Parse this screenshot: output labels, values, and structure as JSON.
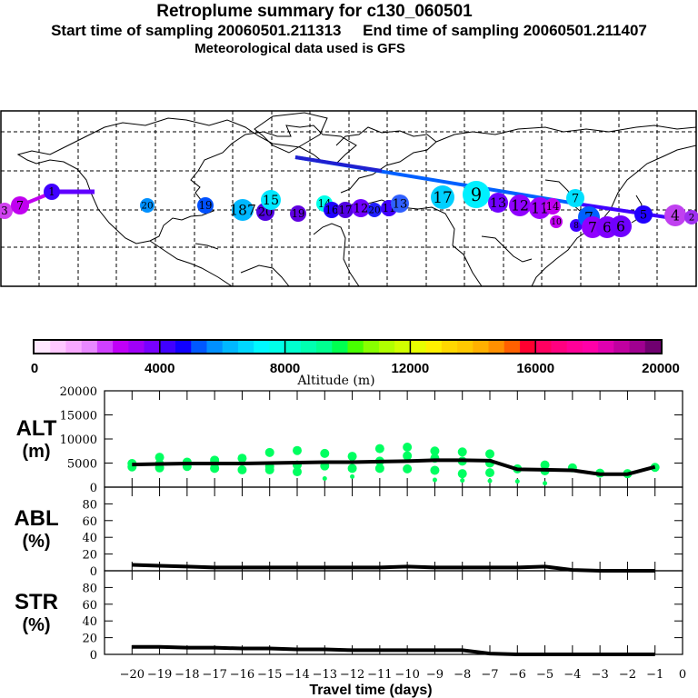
{
  "header": {
    "title": "Retroplume summary for c130_060501",
    "sampling": "Start time of sampling 20060501.211313     End time of sampling 20060501.211407",
    "met": "Meteorological data used is GFS"
  },
  "map": {
    "description": "Retroplume map (North Pacific -> North America -> Atlantic -> Eurasia -> East Asia)",
    "markers": [
      {
        "label": "3",
        "color": "#d040f0"
      },
      {
        "label": "7",
        "color": "#c000f0"
      },
      {
        "label": "1",
        "color": "#4000ff"
      },
      {
        "label": "20",
        "color": "#0090ff"
      },
      {
        "label": "19",
        "color": "#0050ff"
      },
      {
        "label": "187",
        "color": "#00b8ff"
      },
      {
        "label": "20",
        "color": "#5000e0"
      },
      {
        "label": "15",
        "color": "#00e8ff"
      },
      {
        "label": "19",
        "color": "#6000e0"
      },
      {
        "label": "14",
        "color": "#00ffe8"
      },
      {
        "label": "16",
        "color": "#2000ff"
      },
      {
        "label": "17",
        "color": "#5000e0"
      },
      {
        "label": "12",
        "color": "#7000ff"
      },
      {
        "label": "20",
        "color": "#2020ff"
      },
      {
        "label": "11",
        "color": "#4000ff"
      },
      {
        "label": "13",
        "color": "#3060ff"
      },
      {
        "label": "17",
        "color": "#00d0ff"
      },
      {
        "label": "9",
        "color": "#00f0ff"
      },
      {
        "label": "13",
        "color": "#7000ff"
      },
      {
        "label": "12",
        "color": "#9000ff"
      },
      {
        "label": "11",
        "color": "#a000ff"
      },
      {
        "label": "14",
        "color": "#c000f0"
      },
      {
        "label": "10",
        "color": "#c000f0"
      },
      {
        "label": "8",
        "color": "#4000ff"
      },
      {
        "label": "7",
        "color": "#00e0ff"
      },
      {
        "label": "7",
        "color": "#0060ff"
      },
      {
        "label": "7",
        "color": "#9000ff"
      },
      {
        "label": "6",
        "color": "#8000ff"
      },
      {
        "label": "6",
        "color": "#7000ff"
      },
      {
        "label": "5",
        "color": "#2000ff"
      },
      {
        "label": "4",
        "color": "#c040f0"
      },
      {
        "label": "2",
        "color": "#a030f0"
      }
    ]
  },
  "colorbar": {
    "tick_labels": [
      "0",
      "4000",
      "8000",
      "12000",
      "16000",
      "20000"
    ],
    "label": "Altitude (m)",
    "colors": [
      "#ffe8ff",
      "#ffc8ff",
      "#f8a8ff",
      "#e888ff",
      "#d040ff",
      "#c000f8",
      "#a000f8",
      "#7800ff",
      "#4000ff",
      "#1000ff",
      "#0058ff",
      "#0090ff",
      "#00b8ff",
      "#00d8ff",
      "#00f8ff",
      "#00ffe8",
      "#00ffd0",
      "#00ffb0",
      "#00ff90",
      "#00ff50",
      "#48ff00",
      "#88ff00",
      "#b0ff00",
      "#d0ff00",
      "#e8ff00",
      "#fff000",
      "#ffd800",
      "#ffc800",
      "#ffb000",
      "#ff9000",
      "#ff6000",
      "#ff0030",
      "#ff0060",
      "#ff0080",
      "#ff0098",
      "#ff00a8",
      "#e000b0",
      "#c000a0",
      "#a00090",
      "#700070"
    ]
  },
  "chart_data": [
    {
      "type": "line",
      "panel": "ALT",
      "ylabel": "ALT\n(m)",
      "ylim": [
        0,
        20000
      ],
      "yticks": [
        "0",
        "5000",
        "10000",
        "15000",
        "20000"
      ],
      "x": [
        -20,
        -19,
        -18,
        -17,
        -16,
        -15,
        -14,
        -13,
        -12,
        -11,
        -10,
        -9,
        -8,
        -7,
        -6,
        -5,
        -4,
        -3,
        -2,
        -1
      ],
      "series": [
        {
          "name": "mean altitude",
          "values": [
            4700,
            4800,
            4900,
            4900,
            4900,
            5000,
            5100,
            5200,
            5200,
            5300,
            5400,
            5600,
            5600,
            5500,
            3700,
            3600,
            3500,
            2700,
            2700,
            4200
          ]
        }
      ],
      "scatter": {
        "name": "particle cluster altitudes",
        "color": "#00ff60",
        "points": [
          [
            -20,
            4900
          ],
          [
            -20,
            4200
          ],
          [
            -19,
            6200
          ],
          [
            -19,
            4800
          ],
          [
            -19,
            4000
          ],
          [
            -18,
            5200
          ],
          [
            -18,
            4300
          ],
          [
            -17,
            5600
          ],
          [
            -17,
            4900
          ],
          [
            -17,
            3900
          ],
          [
            -16,
            6000
          ],
          [
            -16,
            3600
          ],
          [
            -15,
            7200
          ],
          [
            -15,
            4300
          ],
          [
            -15,
            3600
          ],
          [
            -14,
            7600
          ],
          [
            -14,
            4600
          ],
          [
            -14,
            3200
          ],
          [
            -13,
            7000
          ],
          [
            -13,
            4400
          ],
          [
            -13,
            1800
          ],
          [
            -12,
            6400
          ],
          [
            -12,
            3900
          ],
          [
            -12,
            2200
          ],
          [
            -11,
            8000
          ],
          [
            -11,
            5400
          ],
          [
            -11,
            3900
          ],
          [
            -10,
            8300
          ],
          [
            -10,
            6500
          ],
          [
            -10,
            3800
          ],
          [
            -9,
            7500
          ],
          [
            -9,
            6000
          ],
          [
            -9,
            3500
          ],
          [
            -9,
            1500
          ],
          [
            -8,
            7300
          ],
          [
            -8,
            5400
          ],
          [
            -8,
            2800
          ],
          [
            -8,
            1400
          ],
          [
            -7,
            6900
          ],
          [
            -7,
            5000
          ],
          [
            -7,
            3000
          ],
          [
            -7,
            1300
          ],
          [
            -6,
            3800
          ],
          [
            -6,
            1200
          ],
          [
            -5,
            4600
          ],
          [
            -5,
            3400
          ],
          [
            -5,
            800
          ],
          [
            -4,
            4000
          ],
          [
            -3,
            2900
          ],
          [
            -2,
            2800
          ],
          [
            -1,
            4100
          ]
        ]
      }
    },
    {
      "type": "line",
      "panel": "ABL",
      "ylabel": "ABL\n(%)",
      "ylim": [
        0,
        100
      ],
      "yticks": [
        "0",
        "20",
        "40",
        "60",
        "80"
      ],
      "x": [
        -20,
        -19,
        -18,
        -17,
        -16,
        -15,
        -14,
        -13,
        -12,
        -11,
        -10,
        -9,
        -8,
        -7,
        -6,
        -5,
        -4,
        -3,
        -2,
        -1
      ],
      "series": [
        {
          "name": "boundary layer fraction",
          "values": [
            7,
            6,
            5,
            4,
            4,
            4,
            4,
            4,
            4,
            4,
            5,
            4,
            4,
            4,
            4,
            5,
            1,
            0,
            0,
            0
          ]
        }
      ]
    },
    {
      "type": "line",
      "panel": "STR",
      "ylabel": "STR\n(%)",
      "ylim": [
        0,
        100
      ],
      "yticks": [
        "0",
        "20",
        "40",
        "60",
        "80"
      ],
      "x": [
        -20,
        -19,
        -18,
        -17,
        -16,
        -15,
        -14,
        -13,
        -12,
        -11,
        -10,
        -9,
        -8,
        -7,
        -6,
        -5,
        -4,
        -3,
        -2,
        -1
      ],
      "xticks": [
        "−20",
        "−19",
        "−18",
        "−17",
        "−16",
        "−15",
        "−14",
        "−13",
        "−12",
        "−11",
        "−10",
        "−9",
        "−8",
        "−7",
        "−6",
        "−5",
        "−4",
        "−3",
        "−2",
        "−1",
        "0"
      ],
      "xlabel": "Travel time (days)",
      "series": [
        {
          "name": "stratospheric fraction",
          "values": [
            9,
            9,
            8,
            8,
            7,
            7,
            6,
            6,
            5,
            5,
            5,
            5,
            5,
            1,
            0,
            0,
            0,
            0,
            0,
            0
          ]
        }
      ]
    }
  ]
}
